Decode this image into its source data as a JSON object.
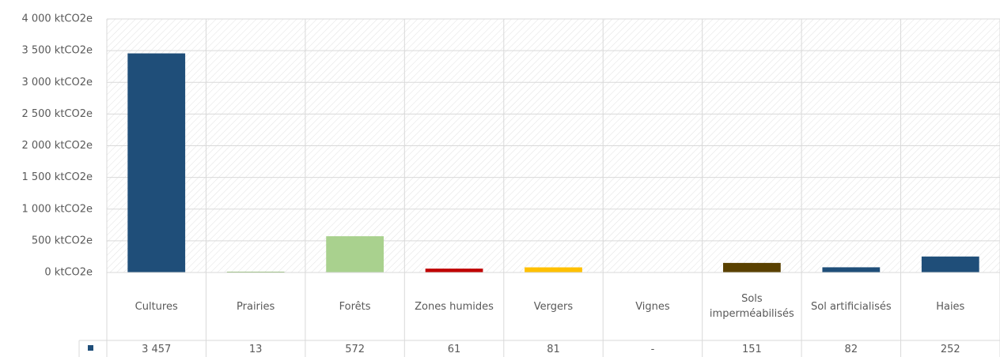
{
  "chart_data": {
    "type": "bar",
    "categories": [
      "Cultures",
      "Prairies",
      "Forêts",
      "Zones humides",
      "Vergers",
      "Vignes",
      "Sols imperméabilisés",
      "Sol artificialisés",
      "Haies"
    ],
    "values": [
      3457,
      13,
      572,
      61,
      81,
      null,
      151,
      82,
      252
    ],
    "value_labels": [
      "3 457",
      "13",
      "572",
      "61",
      "81",
      "-",
      "151",
      "82",
      "252"
    ],
    "colors": [
      "#1f4e79",
      "#70ad47",
      "#a9d18e",
      "#c00000",
      "#ffc000",
      "#7030a0",
      "#5a4100",
      "#1f4e79",
      "#1f4e79"
    ],
    "ylim": [
      0,
      4000
    ],
    "yticks": [
      {
        "value": 0,
        "label": "0 ktCO2e"
      },
      {
        "value": 500,
        "label": "500 ktCO2e"
      },
      {
        "value": 1000,
        "label": "1 000 ktCO2e"
      },
      {
        "value": 1500,
        "label": "1 500 ktCO2e"
      },
      {
        "value": 2000,
        "label": "2 000 ktCO2e"
      },
      {
        "value": 2500,
        "label": "2 500 ktCO2e"
      },
      {
        "value": 3000,
        "label": "3 000 ktCO2e"
      },
      {
        "value": 3500,
        "label": "3 500 ktCO2e"
      },
      {
        "value": 4000,
        "label": "4 000 ktCO2e"
      }
    ],
    "grid": true
  }
}
